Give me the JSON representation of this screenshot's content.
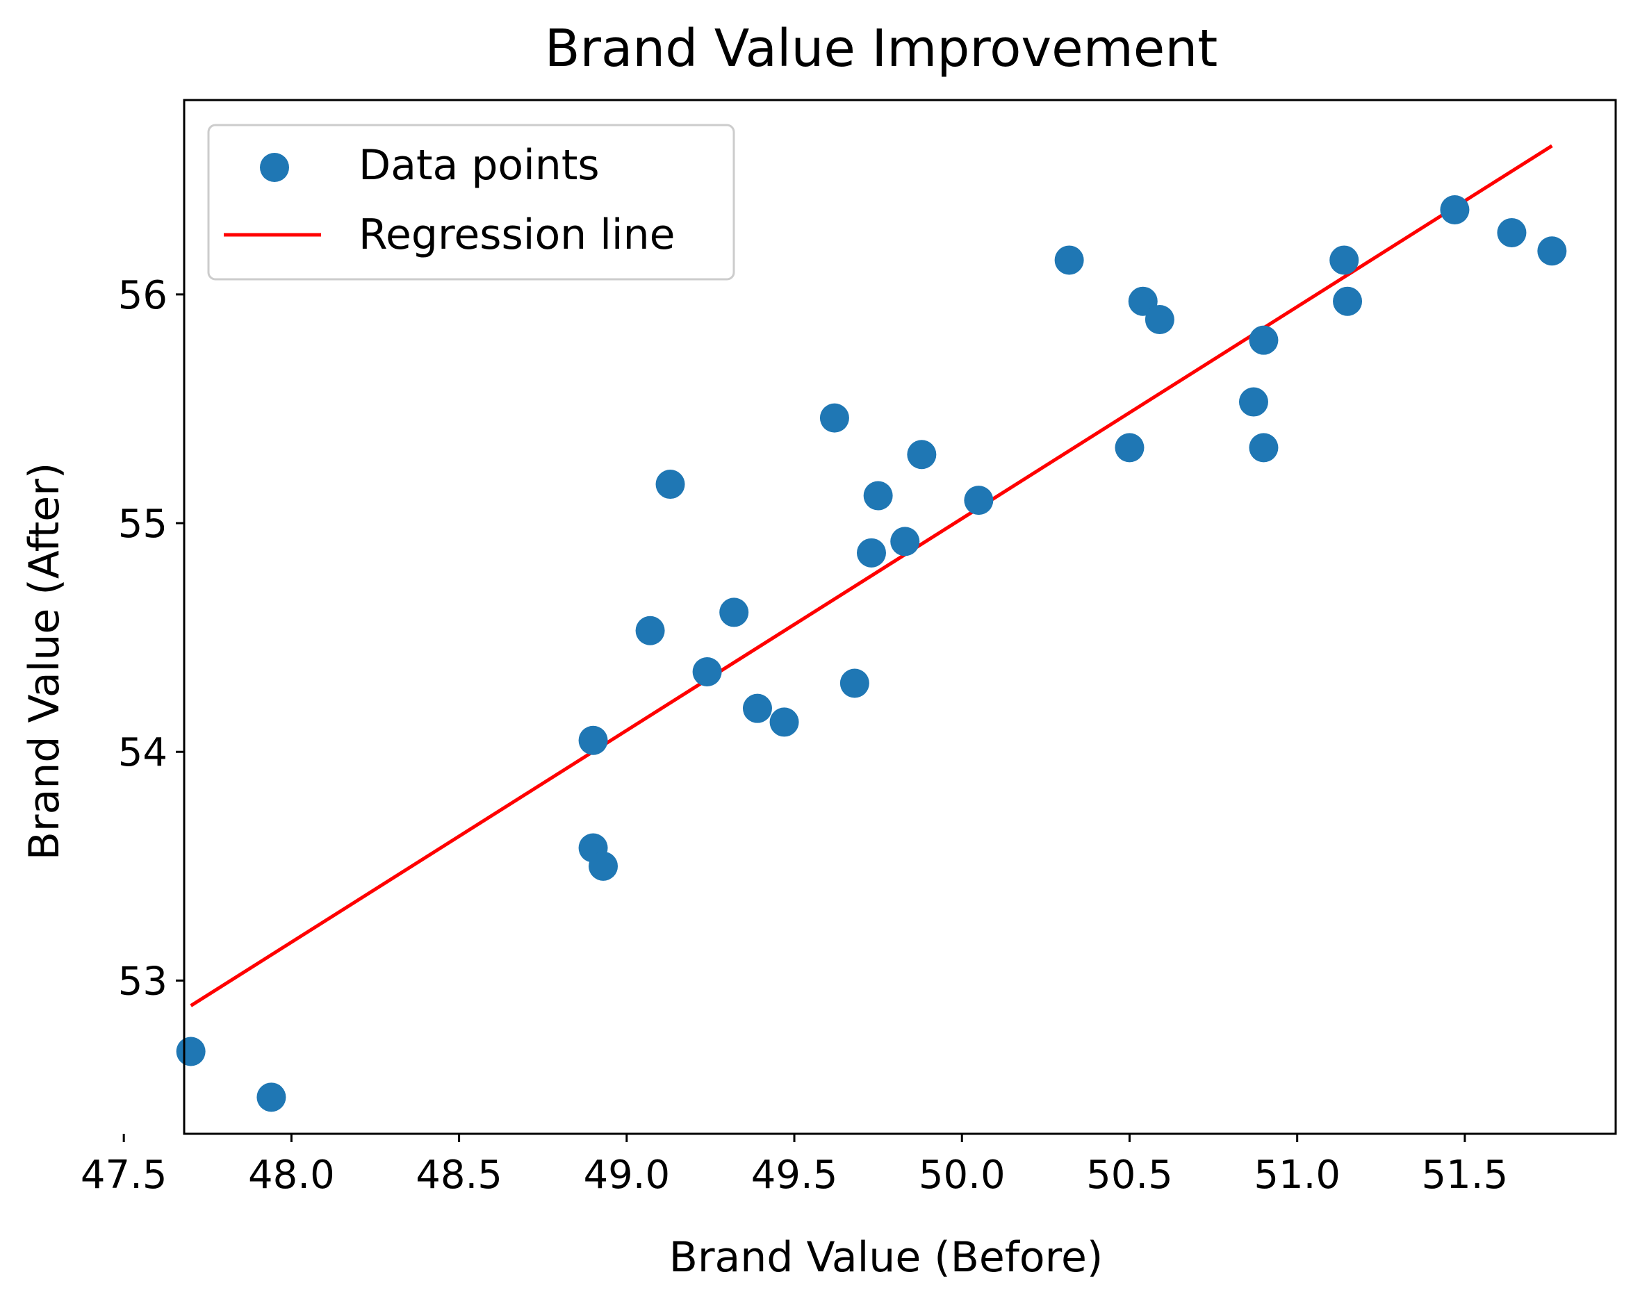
{
  "chart_data": {
    "type": "scatter",
    "title": "Brand Value Improvement",
    "xlabel": "Brand Value (Before)",
    "ylabel": "Brand Value (After)",
    "xlim": [
      47.68,
      51.95
    ],
    "ylim": [
      52.33,
      56.85
    ],
    "xticks": [
      47.5,
      48.0,
      48.5,
      49.0,
      49.5,
      50.0,
      50.5,
      51.0,
      51.5
    ],
    "xtick_labels": [
      "47.5",
      "48.0",
      "48.5",
      "49.0",
      "49.5",
      "50.0",
      "50.5",
      "51.0",
      "51.5"
    ],
    "yticks": [
      53,
      54,
      55,
      56
    ],
    "ytick_labels": [
      "53",
      "54",
      "55",
      "56"
    ],
    "grid": false,
    "legend_position": "top-left",
    "series": [
      {
        "name": "Data points",
        "kind": "scatter",
        "color": "#1f77b4",
        "points": [
          [
            47.7,
            52.69
          ],
          [
            47.94,
            52.49
          ],
          [
            48.9,
            53.58
          ],
          [
            48.93,
            53.5
          ],
          [
            48.9,
            54.05
          ],
          [
            49.07,
            54.53
          ],
          [
            49.13,
            55.17
          ],
          [
            49.24,
            54.35
          ],
          [
            49.32,
            54.61
          ],
          [
            49.39,
            54.19
          ],
          [
            49.47,
            54.13
          ],
          [
            49.62,
            55.46
          ],
          [
            49.68,
            54.3
          ],
          [
            49.73,
            54.87
          ],
          [
            49.75,
            55.12
          ],
          [
            49.83,
            54.92
          ],
          [
            49.88,
            55.3
          ],
          [
            50.05,
            55.1
          ],
          [
            50.32,
            56.15
          ],
          [
            50.5,
            55.33
          ],
          [
            50.54,
            55.97
          ],
          [
            50.59,
            55.89
          ],
          [
            50.87,
            55.53
          ],
          [
            50.9,
            55.8
          ],
          [
            50.9,
            55.33
          ],
          [
            51.14,
            56.15
          ],
          [
            51.15,
            55.97
          ],
          [
            51.47,
            56.37
          ],
          [
            51.64,
            56.27
          ],
          [
            51.76,
            56.19
          ]
        ]
      },
      {
        "name": "Regression line",
        "kind": "line",
        "color": "#ff0000",
        "points": [
          [
            47.7,
            52.89
          ],
          [
            51.76,
            56.65
          ]
        ]
      }
    ]
  }
}
